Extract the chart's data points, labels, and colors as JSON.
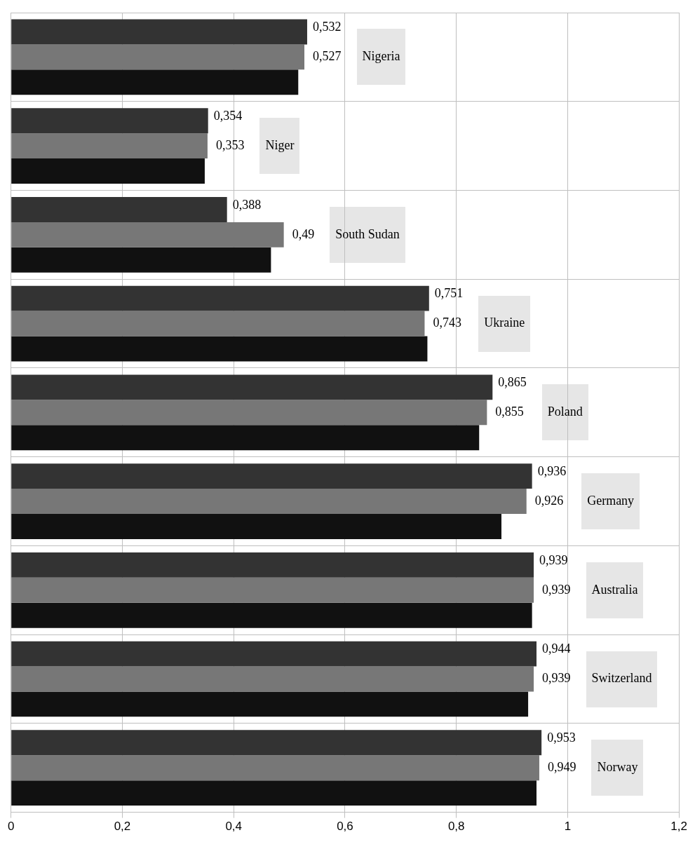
{
  "chart_data": {
    "type": "bar",
    "orientation": "horizontal",
    "categories": [
      "Nigeria",
      "Niger",
      "South Sudan",
      "Ukraine",
      "Poland",
      "Germany",
      "Australia",
      "Switzerland",
      "Norway"
    ],
    "series": [
      {
        "color": "#333333",
        "values": [
          0.532,
          0.354,
          0.388,
          0.751,
          0.865,
          0.936,
          0.939,
          0.944,
          0.953
        ],
        "value_labels": [
          "0,532",
          "0,354",
          "0,388",
          "0,751",
          "0,865",
          "0,936",
          "0,939",
          "0,944",
          "0,953"
        ]
      },
      {
        "color": "#777777",
        "values": [
          0.527,
          0.353,
          0.49,
          0.743,
          0.855,
          0.926,
          0.939,
          0.939,
          0.949
        ],
        "value_labels": [
          "0,527",
          "0,353",
          "0,49",
          "0,743",
          "0,855",
          "0,926",
          "0,939",
          "0,939",
          "0,949"
        ]
      },
      {
        "color": "#111111",
        "values": [
          0.516,
          0.348,
          0.467,
          0.748,
          0.841,
          0.881,
          0.936,
          0.929,
          0.944
        ]
      }
    ],
    "xlim": [
      0,
      1.2
    ],
    "xticks": [
      {
        "value": 0,
        "label": "0"
      },
      {
        "value": 0.2,
        "label": "0,2"
      },
      {
        "value": 0.4,
        "label": "0,4"
      },
      {
        "value": 0.6,
        "label": "0,6"
      },
      {
        "value": 0.8,
        "label": "0,8"
      },
      {
        "value": 1,
        "label": "1"
      },
      {
        "value": 1.2,
        "label": "1,2"
      }
    ],
    "grid": true,
    "tick_labels": "x",
    "legend": false
  }
}
